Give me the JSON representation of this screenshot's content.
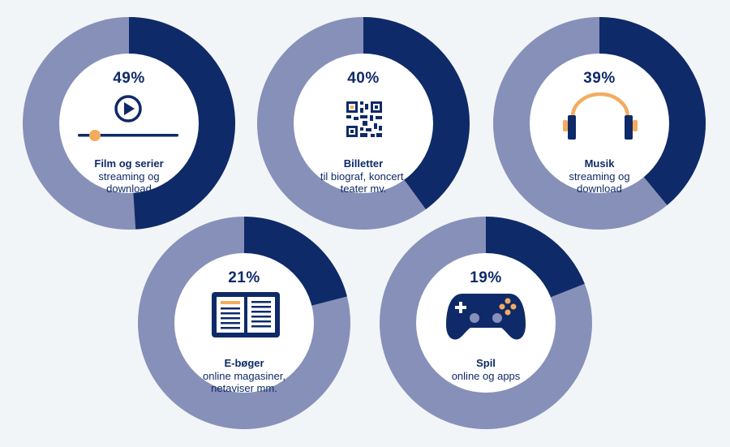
{
  "colors": {
    "share": "#0f2a68",
    "rest": "#8790b9",
    "center": "#ffffff",
    "accent": "#f3ac5e",
    "text": "#0f2a68"
  },
  "chart_data": {
    "type": "pie",
    "title": "",
    "items": [
      {
        "label": "49%",
        "value": 49,
        "name": "Film og serier",
        "sub": [
          "streaming og",
          "download"
        ],
        "icon": "play-slider-icon"
      },
      {
        "label": "40%",
        "value": 40,
        "name": "Billetter",
        "sub": [
          "til biograf,  koncert,",
          "teater mv."
        ],
        "icon": "qr-code-icon"
      },
      {
        "label": "39%",
        "value": 39,
        "name": "Musik",
        "sub": [
          "streaming og",
          "download"
        ],
        "icon": "headphones-icon"
      },
      {
        "label": "21%",
        "value": 21,
        "name": "E-bøger",
        "sub": [
          "online magasiner,",
          "netaviser mm."
        ],
        "icon": "open-book-icon"
      },
      {
        "label": "19%",
        "value": 19,
        "name": "Spil",
        "sub": [
          "online og apps"
        ],
        "icon": "gamepad-icon"
      }
    ]
  }
}
